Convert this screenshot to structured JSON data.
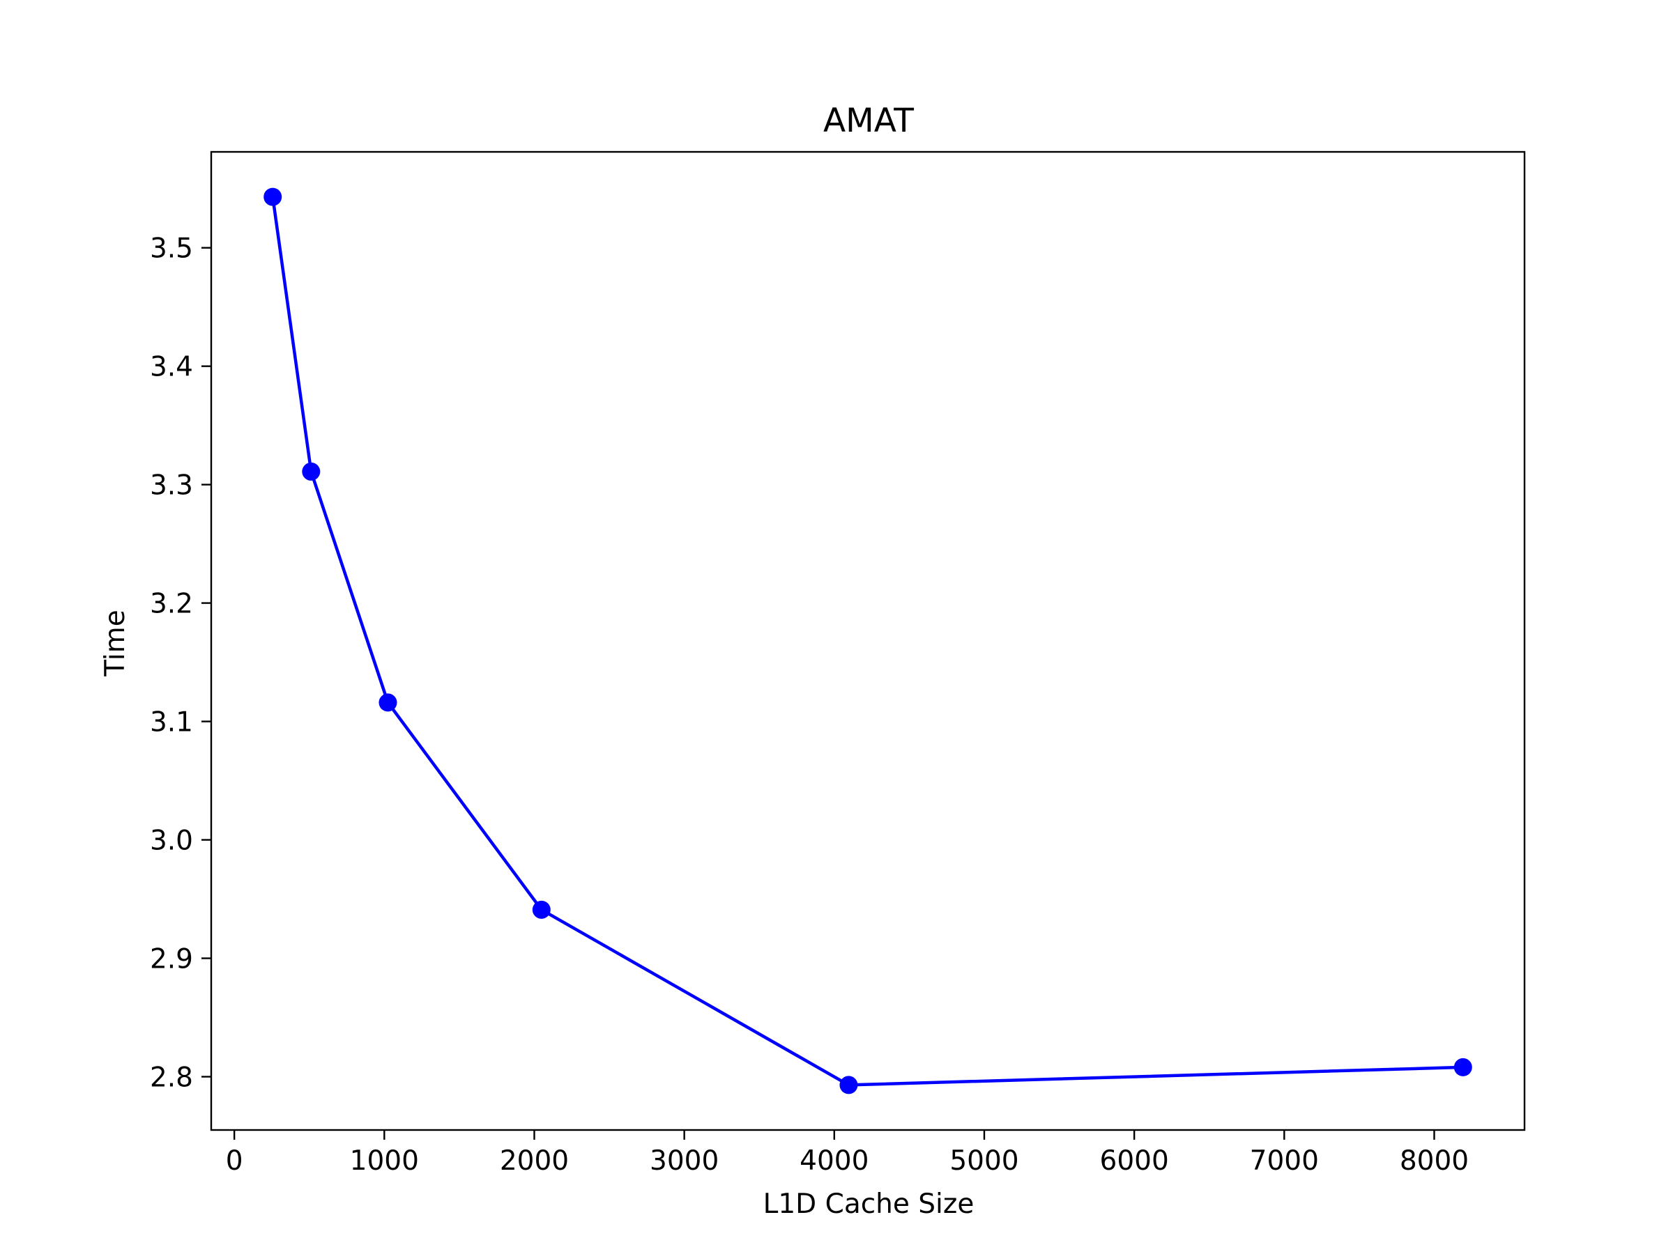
{
  "chart_data": {
    "type": "line",
    "title": "AMAT",
    "xlabel": "L1D Cache Size",
    "ylabel": "Time",
    "x": [
      256,
      512,
      1024,
      2048,
      4096,
      8192
    ],
    "series": [
      {
        "values": [
          3.543,
          3.311,
          3.116,
          2.941,
          2.793,
          2.808
        ],
        "color": "#0000ff",
        "marker": "circle"
      }
    ],
    "xlim": [
      -154,
      8602
    ],
    "ylim": [
      2.755,
      3.581
    ],
    "xticks": [
      0,
      1000,
      2000,
      3000,
      4000,
      5000,
      6000,
      7000,
      8000
    ],
    "xtick_labels": [
      "0",
      "1000",
      "2000",
      "3000",
      "4000",
      "5000",
      "6000",
      "7000",
      "8000"
    ],
    "yticks": [
      2.8,
      2.9,
      3.0,
      3.1,
      3.2,
      3.3,
      3.4,
      3.5
    ],
    "ytick_labels": [
      "2.8",
      "2.9",
      "3.0",
      "3.1",
      "3.2",
      "3.3",
      "3.4",
      "3.5"
    ],
    "grid": false,
    "legend": "none"
  }
}
